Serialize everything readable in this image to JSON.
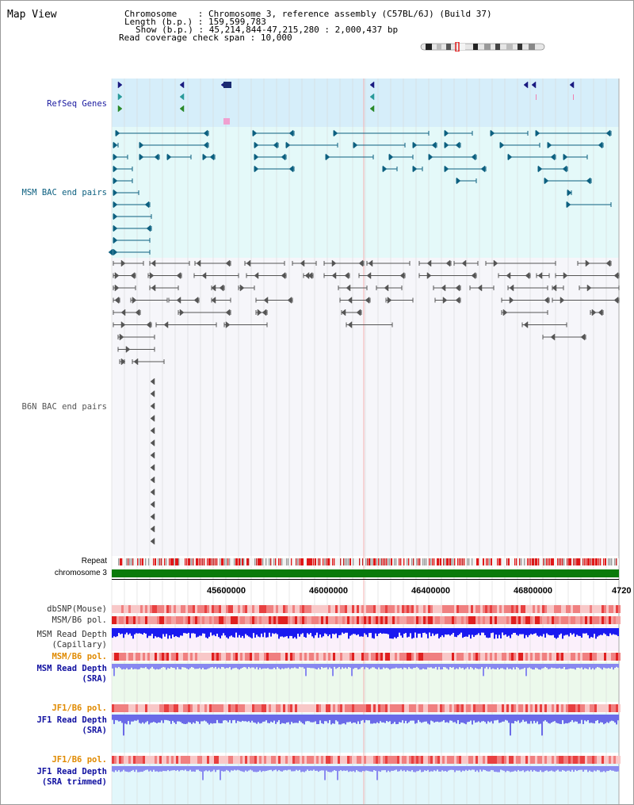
{
  "title": "Map View",
  "info": {
    "chromosome_label": "Chromosome",
    "chromosome_value": "Chromosome 3, reference assembly (C57BL/6J) (Build 37)",
    "length_label": "Length (b.p.)",
    "length_value": "159,599,783",
    "show_label": "Show (b.p.)",
    "show_value": "45,214,844-47,215,280 : 2,000,437 bp",
    "coverage_label": "Read coverage check span",
    "coverage_value": "10,000"
  },
  "tracks": {
    "refseq": "RefSeq Genes",
    "msm_bac": "MSM BAC end pairs",
    "b6n_bac": "B6N BAC end pairs",
    "repeat": "Repeat",
    "chromosome": "chromosome 3",
    "dbsnp": "dbSNP(Mouse)",
    "msm_b6_pol_1": "MSM/B6 pol.",
    "msm_read_depth_cap_1": "MSM Read Depth",
    "msm_read_depth_cap_2": "(Capillary)",
    "msm_b6_pol_2": "MSM/B6 pol.",
    "msm_read_depth_sra_1": "MSM Read Depth",
    "msm_read_depth_sra_2": "(SRA)",
    "jf1_b6_pol_1": "JF1/B6 pol.",
    "jf1_read_depth_sra_1": "JF1 Read Depth",
    "jf1_read_depth_sra_2": "(SRA)",
    "jf1_b6_pol_2": "JF1/B6 pol.",
    "jf1_read_depth_trim_1": "JF1 Read Depth",
    "jf1_read_depth_trim_2": "(SRA trimmed)"
  },
  "axis": {
    "ticks": [
      "45600000",
      "46000000",
      "46400000",
      "46800000",
      "4720"
    ]
  },
  "colors": {
    "refseq": "#1a1aa0",
    "msm_bac": "#0d6080",
    "b6n_bac": "#555555",
    "orange": "#e08a00",
    "blue_label": "#1010a0",
    "chromosome_bar": "#0a7a0a"
  }
}
